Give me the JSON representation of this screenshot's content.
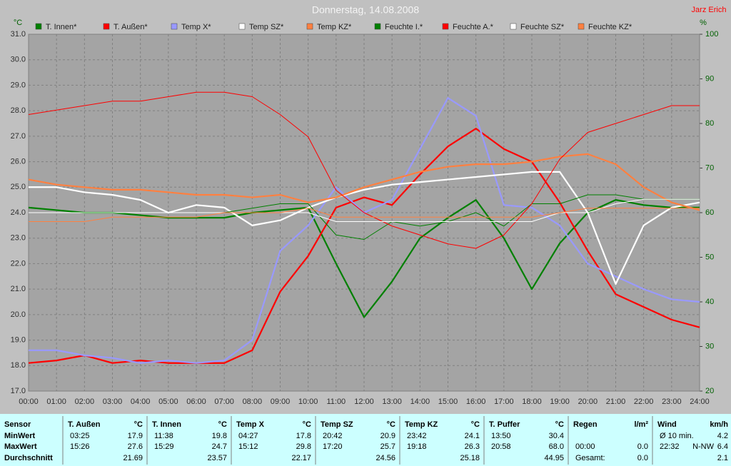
{
  "chart_data": {
    "type": "line",
    "title": "Donnerstag, 14.08.2008",
    "author": "Jarz Erich",
    "y_label": "°C",
    "y2_label": "%",
    "x": [
      0,
      1,
      2,
      3,
      4,
      5,
      6,
      7,
      8,
      9,
      10,
      11,
      12,
      13,
      14,
      15,
      16,
      17,
      18,
      19,
      20,
      21,
      22,
      23,
      24
    ],
    "xlim": [
      0,
      24
    ],
    "xticks": [
      {
        "value": 0,
        "label": "00:00"
      },
      {
        "value": 1,
        "label": "01:00"
      },
      {
        "value": 2,
        "label": "02:00"
      },
      {
        "value": 3,
        "label": "03:00"
      },
      {
        "value": 4,
        "label": "04:00"
      },
      {
        "value": 5,
        "label": "05:00"
      },
      {
        "value": 6,
        "label": "06:00"
      },
      {
        "value": 7,
        "label": "07:00"
      },
      {
        "value": 8,
        "label": "08:00"
      },
      {
        "value": 9,
        "label": "09:00"
      },
      {
        "value": 10,
        "label": "10:00"
      },
      {
        "value": 11,
        "label": "11:00"
      },
      {
        "value": 12,
        "label": "12:00"
      },
      {
        "value": 13,
        "label": "13:00"
      },
      {
        "value": 14,
        "label": "14:00"
      },
      {
        "value": 15,
        "label": "15:00"
      },
      {
        "value": 16,
        "label": "16:00"
      },
      {
        "value": 17,
        "label": "17:00"
      },
      {
        "value": 18,
        "label": "18:00"
      },
      {
        "value": 19,
        "label": "19:00"
      },
      {
        "value": 20,
        "label": "20:00"
      },
      {
        "value": 21,
        "label": "21:00"
      },
      {
        "value": 22,
        "label": "22:00"
      },
      {
        "value": 23,
        "label": "23:00"
      },
      {
        "value": 24,
        "label": "24:00"
      }
    ],
    "ylim": [
      17,
      31
    ],
    "yticks": [
      {
        "value": 17,
        "label": "17.0"
      },
      {
        "value": 18,
        "label": "18.0"
      },
      {
        "value": 19,
        "label": "19.0"
      },
      {
        "value": 20,
        "label": "20.0"
      },
      {
        "value": 21,
        "label": "21.0"
      },
      {
        "value": 22,
        "label": "22.0"
      },
      {
        "value": 23,
        "label": "23.0"
      },
      {
        "value": 24,
        "label": "24.0"
      },
      {
        "value": 25,
        "label": "25.0"
      },
      {
        "value": 26,
        "label": "26.0"
      },
      {
        "value": 27,
        "label": "27.0"
      },
      {
        "value": 28,
        "label": "28.0"
      },
      {
        "value": 29,
        "label": "29.0"
      },
      {
        "value": 30,
        "label": "30.0"
      },
      {
        "value": 31,
        "label": "31.0"
      }
    ],
    "y2lim": [
      20,
      100
    ],
    "y2ticks": [
      20,
      30,
      40,
      50,
      60,
      70,
      80,
      90,
      100
    ],
    "grid": true,
    "series": [
      {
        "name": "T. Innen*",
        "color": "#008000",
        "values": [
          24.2,
          24.1,
          24.0,
          24.0,
          23.9,
          23.8,
          23.8,
          23.8,
          24.0,
          24.1,
          24.2,
          22.0,
          19.9,
          21.3,
          23.0,
          23.8,
          24.5,
          23.0,
          21.0,
          22.8,
          24.0,
          24.5,
          24.3,
          24.2,
          24.2
        ]
      },
      {
        "name": "T. Außen*",
        "color": "#ff0000",
        "values": [
          18.1,
          18.2,
          18.4,
          18.1,
          18.2,
          18.1,
          18.1,
          18.1,
          18.6,
          20.9,
          22.3,
          24.2,
          24.6,
          24.3,
          25.5,
          26.6,
          27.3,
          26.5,
          26.0,
          24.4,
          22.5,
          20.8,
          20.3,
          19.8,
          19.5
        ]
      },
      {
        "name": "Temp X*",
        "color": "#9999ff",
        "values": [
          18.6,
          18.6,
          18.4,
          18.3,
          18.1,
          18.2,
          18.1,
          18.2,
          19.0,
          22.5,
          23.5,
          25.0,
          24.0,
          24.5,
          26.5,
          28.5,
          27.8,
          24.3,
          24.2,
          23.5,
          22.0,
          21.5,
          21.0,
          20.6,
          20.5
        ]
      },
      {
        "name": "Temp SZ*",
        "color": "#ffffff",
        "values": [
          25.0,
          25.0,
          24.8,
          24.7,
          24.5,
          24.0,
          24.3,
          24.2,
          23.5,
          23.7,
          24.2,
          24.6,
          24.9,
          25.1,
          25.2,
          25.3,
          25.4,
          25.5,
          25.6,
          25.6,
          24.0,
          21.2,
          23.5,
          24.2,
          24.4
        ]
      },
      {
        "name": "Temp KZ*",
        "color": "#ff8040",
        "values": [
          25.3,
          25.1,
          25.0,
          24.9,
          24.9,
          24.8,
          24.7,
          24.7,
          24.6,
          24.7,
          24.4,
          24.6,
          25.0,
          25.3,
          25.6,
          25.8,
          25.9,
          25.9,
          26.0,
          26.2,
          26.3,
          25.9,
          25.0,
          24.4,
          24.1
        ]
      },
      {
        "name": "Feuchte I.*",
        "color": "#008000",
        "axis": "y2",
        "values": [
          60,
          60,
          60,
          60,
          60,
          60,
          60,
          60,
          61,
          62,
          62,
          55,
          54,
          58,
          57,
          58,
          60,
          57,
          62,
          62,
          64,
          64,
          63,
          63,
          63
        ]
      },
      {
        "name": "Feuchte A.*",
        "color": "#ff0000",
        "axis": "y2",
        "values": [
          82,
          83,
          84,
          85,
          85,
          86,
          87,
          87,
          86,
          82,
          77,
          65,
          60,
          57,
          55,
          53,
          52,
          55,
          62,
          72,
          78,
          80,
          82,
          84,
          84
        ]
      },
      {
        "name": "Feuchte SZ*",
        "color": "#ffffff",
        "axis": "y2",
        "values": [
          60,
          60,
          60,
          60,
          60,
          60,
          60,
          60,
          60,
          60,
          60,
          58,
          58,
          58,
          58,
          58,
          58,
          58,
          58,
          60,
          60,
          62,
          63,
          63,
          63
        ]
      },
      {
        "name": "Feuchte KZ*",
        "color": "#ff8040",
        "axis": "y2",
        "values": [
          58,
          58,
          58,
          59,
          59,
          59,
          59,
          60,
          60,
          60,
          61,
          59,
          59,
          59,
          59,
          59,
          59,
          59,
          59,
          60,
          61,
          61,
          61,
          61,
          61
        ]
      }
    ]
  },
  "table": {
    "corner": "Sensor",
    "rows": [
      "MinWert",
      "MaxWert",
      "Durchschnitt"
    ],
    "groups": [
      {
        "name": "T. Außen",
        "unit": "°C",
        "cells": [
          [
            "03:25",
            "17.9"
          ],
          [
            "15:26",
            "27.6"
          ],
          [
            "21.69"
          ]
        ]
      },
      {
        "name": "T. Innen",
        "unit": "°C",
        "cells": [
          [
            "11:38",
            "19.8"
          ],
          [
            "15:29",
            "24.7"
          ],
          [
            "23.57"
          ]
        ]
      },
      {
        "name": "Temp X",
        "unit": "°C",
        "cells": [
          [
            "04:27",
            "17.8"
          ],
          [
            "15:12",
            "29.8"
          ],
          [
            "22.17"
          ]
        ]
      },
      {
        "name": "Temp SZ",
        "unit": "°C",
        "cells": [
          [
            "20:42",
            "20.9"
          ],
          [
            "17:20",
            "25.7"
          ],
          [
            "24.56"
          ]
        ]
      },
      {
        "name": "Temp KZ",
        "unit": "°C",
        "cells": [
          [
            "23:42",
            "24.1"
          ],
          [
            "19:18",
            "26.3"
          ],
          [
            "25.18"
          ]
        ]
      },
      {
        "name": "T. Puffer",
        "unit": "°C",
        "cells": [
          [
            "13:50",
            "30.4"
          ],
          [
            "20:58",
            "68.0"
          ],
          [
            "44.95"
          ]
        ]
      },
      {
        "name": "Regen",
        "unit": "l/m²",
        "cells": [
          [],
          [
            "00:00",
            "0.0"
          ],
          [
            "Gesamt:",
            "0.0"
          ]
        ]
      },
      {
        "name": "Wind",
        "unit": "km/h",
        "cells": [
          [
            "Ø 10 min.",
            "4.2"
          ],
          [
            "22:32",
            "N-NW",
            "6.4"
          ],
          [
            "2.1"
          ]
        ]
      }
    ]
  }
}
